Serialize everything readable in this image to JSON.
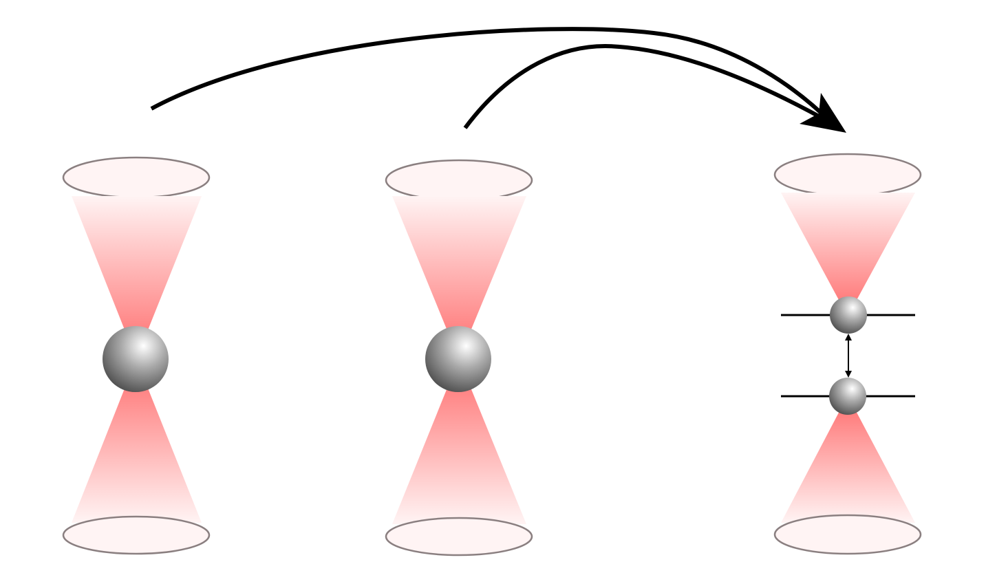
{
  "diagram": {
    "description_type": "optical-tweezer-merge-schematic",
    "colors": {
      "beam_core": "#ff6b6b",
      "beam_edge": "#fff4f4",
      "ellipse_stroke": "#8a7f80",
      "atom_light": "#ffffff",
      "atom_mid": "#a9a9a9",
      "atom_dark": "#4d4d4d",
      "arrow": "#000000",
      "level_line": "#000000"
    },
    "tweezers": [
      {
        "name": "tweezer-1",
        "atoms": 1
      },
      {
        "name": "tweezer-2",
        "atoms": 1
      },
      {
        "name": "tweezer-3-merged",
        "atoms": 2,
        "energy_levels": 2,
        "coupling_arrow": "double-headed"
      }
    ],
    "transfer_arrows": [
      {
        "name": "arrow-from-tweezer-1",
        "from": "tweezer-1",
        "to": "tweezer-3-merged"
      },
      {
        "name": "arrow-from-tweezer-2",
        "from": "tweezer-2",
        "to": "tweezer-3-merged"
      }
    ]
  }
}
